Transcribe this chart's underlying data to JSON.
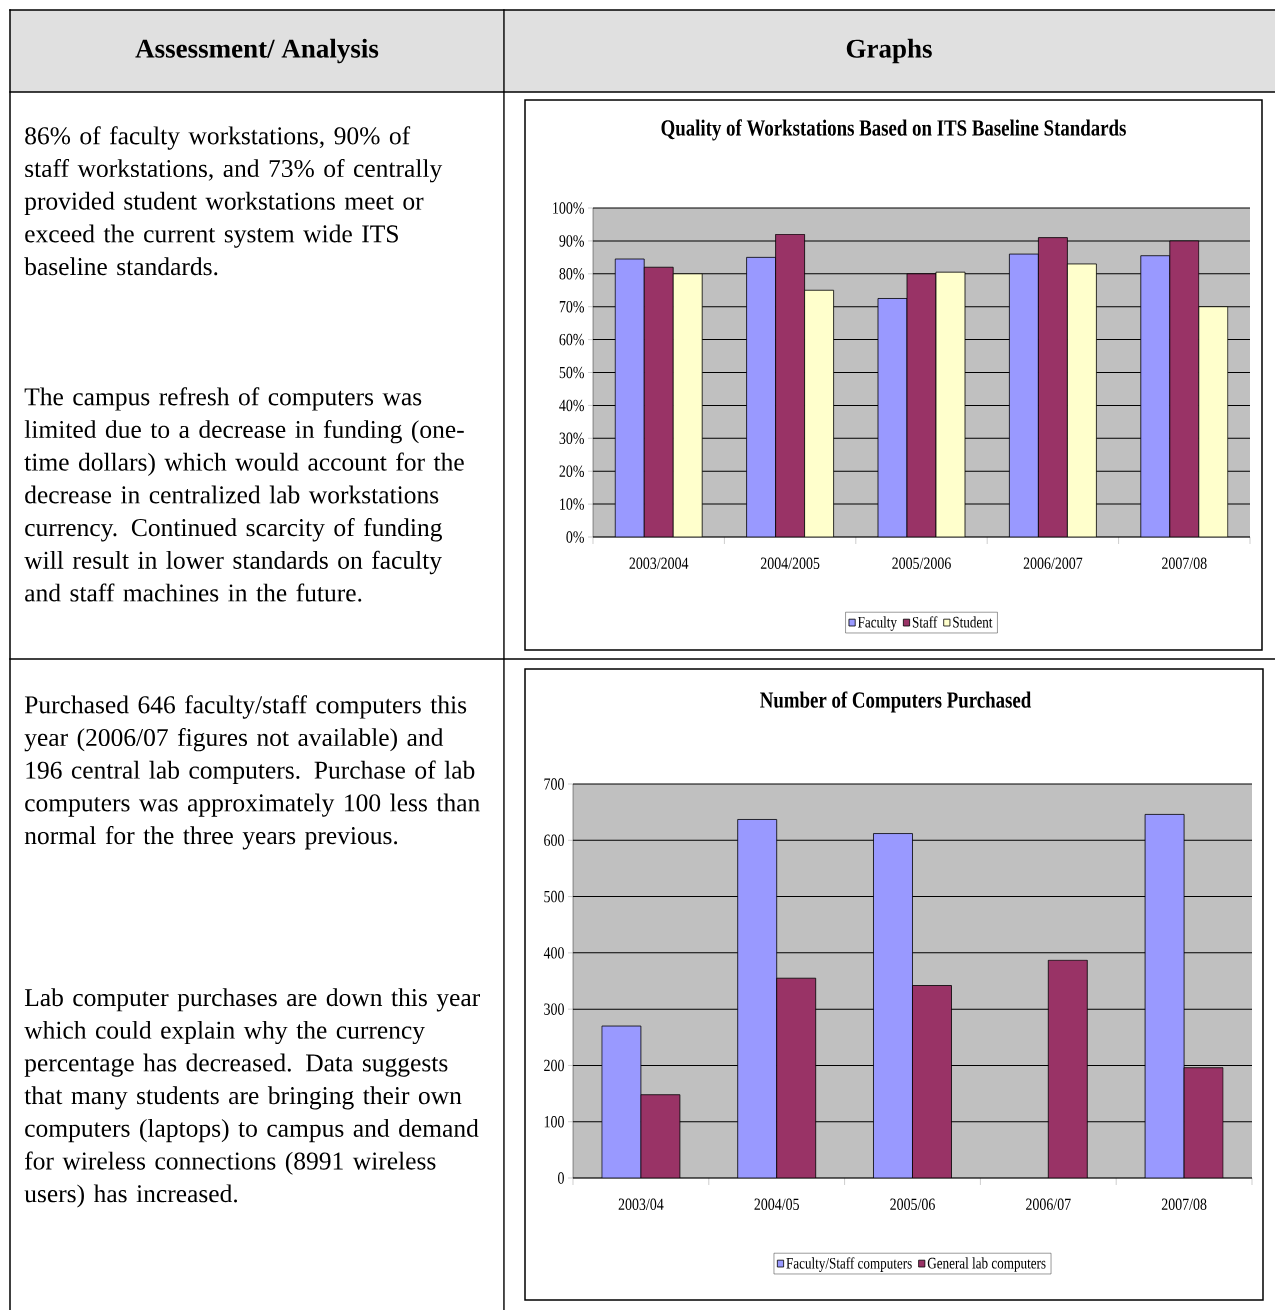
{
  "chart_data": [
    {
      "type": "bar",
      "title": "Quality of Workstations Based on ITS Baseline Standards",
      "categories": [
        "2003/2004",
        "2004/2005",
        "2005/2006",
        "2006/2007",
        "2007/08"
      ],
      "series": [
        {
          "name": "Faculty",
          "color": "#9999ff",
          "values": [
            84.5,
            85,
            72.5,
            86,
            85.5
          ]
        },
        {
          "name": "Staff",
          "color": "#993366",
          "values": [
            82,
            92,
            80,
            91,
            90
          ]
        },
        {
          "name": "Student",
          "color": "#ffffcc",
          "values": [
            80,
            75,
            80.5,
            83,
            70
          ]
        }
      ],
      "ylim": [
        0,
        100
      ],
      "yticks": [
        {
          "value": 0,
          "label": "0%"
        },
        {
          "value": 10,
          "label": "10%"
        },
        {
          "value": 20,
          "label": "20%"
        },
        {
          "value": 30,
          "label": "30%"
        },
        {
          "value": 40,
          "label": "40%"
        },
        {
          "value": 50,
          "label": "50%"
        },
        {
          "value": 60,
          "label": "60%"
        },
        {
          "value": 70,
          "label": "70%"
        },
        {
          "value": 80,
          "label": "80%"
        },
        {
          "value": 90,
          "label": "90%"
        },
        {
          "value": 100,
          "label": "100%"
        }
      ],
      "grid": "y",
      "legend": "bottom",
      "annotations": [
        "Assessment/ Analysis",
        "Graphs",
        "86% of faculty workstations, 90% of staff workstations, and 73% of centrally provided student workstations meet or exceed the current system wide ITS baseline standards.",
        "The campus refresh of computers was limited due to a decrease in funding (one-time dollars) which would account for the decrease in centralized lab workstations currency.  Continued scarcity of funding will result in lower standards on faculty and staff machines in the future."
      ]
    },
    {
      "type": "bar",
      "title": "Number of Computers Purchased",
      "categories": [
        "2003/04",
        "2004/05",
        "2005/06",
        "2006/07",
        "2007/08"
      ],
      "series": [
        {
          "name": "Faculty/Staff computers",
          "color": "#9999ff",
          "values": [
            270,
            637,
            612,
            null,
            646
          ]
        },
        {
          "name": "General lab computers",
          "color": "#993366",
          "values": [
            148,
            355,
            342,
            387,
            196
          ]
        }
      ],
      "ylim": [
        0,
        700
      ],
      "yticks": [
        0,
        100,
        200,
        300,
        400,
        500,
        600,
        700
      ],
      "grid": "y",
      "legend": "bottom",
      "annotations": [
        "Purchased 646 faculty/staff computers this year (2006/07 figures not available) and 196 central lab computers.  Purchase of lab computers was approximately 100 less than normal for the three years previous.",
        "Lab computer purchases are down this year which could explain why the currency percentage has decreased. Data suggests that many students are bringing their own computers (laptops) to campus and demand for wireless connections (8991 wireless users) has increased."
      ]
    }
  ]
}
